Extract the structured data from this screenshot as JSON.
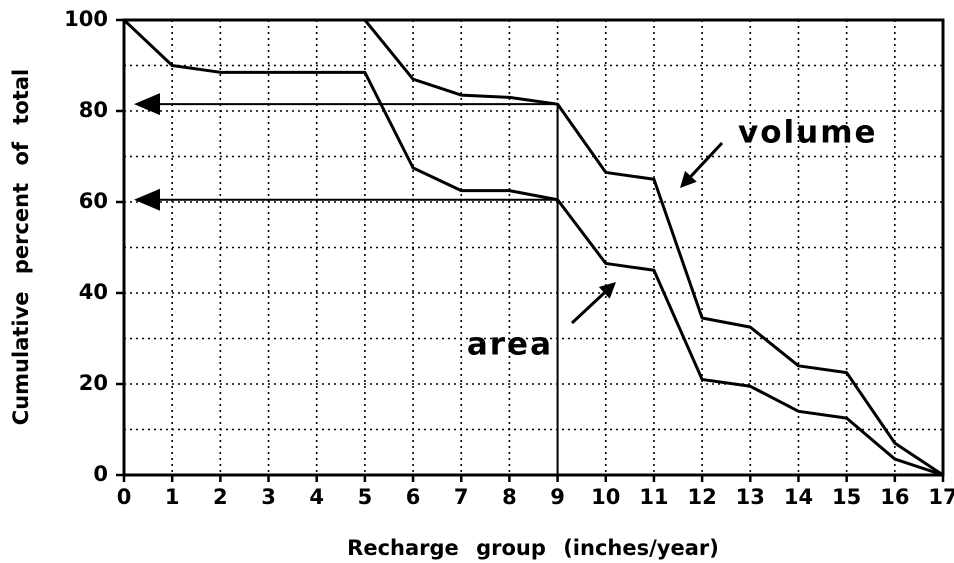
{
  "chart_data": {
    "type": "line",
    "x_label": "Recharge group (inches/year)",
    "y_label": "Cumulative percent of total",
    "x": [
      0,
      1,
      2,
      3,
      4,
      5,
      6,
      7,
      8,
      9,
      10,
      11,
      12,
      13,
      14,
      15,
      16,
      17
    ],
    "series": [
      {
        "name": "volume",
        "color": "#000000",
        "values": [
          100,
          100,
          100,
          100,
          100,
          100,
          87,
          83.5,
          83,
          81.5,
          66.5,
          65,
          34.5,
          32.5,
          24,
          22.5,
          7,
          0
        ]
      },
      {
        "name": "area",
        "color": "#000000",
        "values": [
          100,
          90,
          88.5,
          88.5,
          88.5,
          88.5,
          67.5,
          62.5,
          62.5,
          60.5,
          46.5,
          45,
          21,
          19.5,
          14,
          12.5,
          3.5,
          0
        ]
      }
    ],
    "xlim": [
      0,
      17
    ],
    "xticks": [
      0,
      1,
      2,
      3,
      4,
      5,
      6,
      7,
      8,
      9,
      10,
      11,
      12,
      13,
      14,
      15,
      16,
      17
    ],
    "ylim": [
      0,
      100
    ],
    "yticks": [
      0,
      20,
      40,
      60,
      80,
      100
    ],
    "y_minor_ticks": [
      10,
      30,
      50,
      70,
      90
    ],
    "grid": true,
    "reference_x": 9
  }
}
